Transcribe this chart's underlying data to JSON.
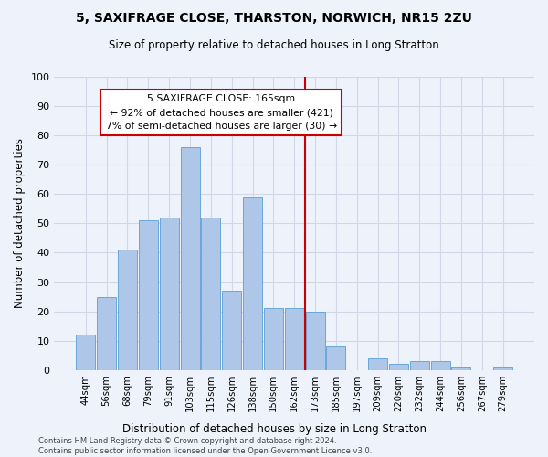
{
  "title": "5, SAXIFRAGE CLOSE, THARSTON, NORWICH, NR15 2ZU",
  "subtitle": "Size of property relative to detached houses in Long Stratton",
  "xlabel_bottom": "Distribution of detached houses by size in Long Stratton",
  "ylabel": "Number of detached properties",
  "bar_labels": [
    "44sqm",
    "56sqm",
    "68sqm",
    "79sqm",
    "91sqm",
    "103sqm",
    "115sqm",
    "126sqm",
    "138sqm",
    "150sqm",
    "162sqm",
    "173sqm",
    "185sqm",
    "197sqm",
    "209sqm",
    "220sqm",
    "232sqm",
    "244sqm",
    "256sqm",
    "267sqm",
    "279sqm"
  ],
  "bar_values": [
    12,
    25,
    41,
    51,
    52,
    76,
    52,
    27,
    59,
    21,
    21,
    20,
    8,
    0,
    4,
    2,
    3,
    3,
    1,
    0,
    1
  ],
  "bar_color": "#aec6e8",
  "bar_edgecolor": "#5a9fd4",
  "vline_x_index": 10.5,
  "vline_color": "#cc0000",
  "annotation_text": "5 SAXIFRAGE CLOSE: 165sqm\n← 92% of detached houses are smaller (421)\n7% of semi-detached houses are larger (30) →",
  "annotation_box_color": "#cc0000",
  "ylim": [
    0,
    100
  ],
  "yticks": [
    0,
    10,
    20,
    30,
    40,
    50,
    60,
    70,
    80,
    90,
    100
  ],
  "grid_color": "#d0d8e8",
  "background_color": "#eef2fb",
  "footer_text": "Contains HM Land Registry data © Crown copyright and database right 2024.\nContains public sector information licensed under the Open Government Licence v3.0."
}
